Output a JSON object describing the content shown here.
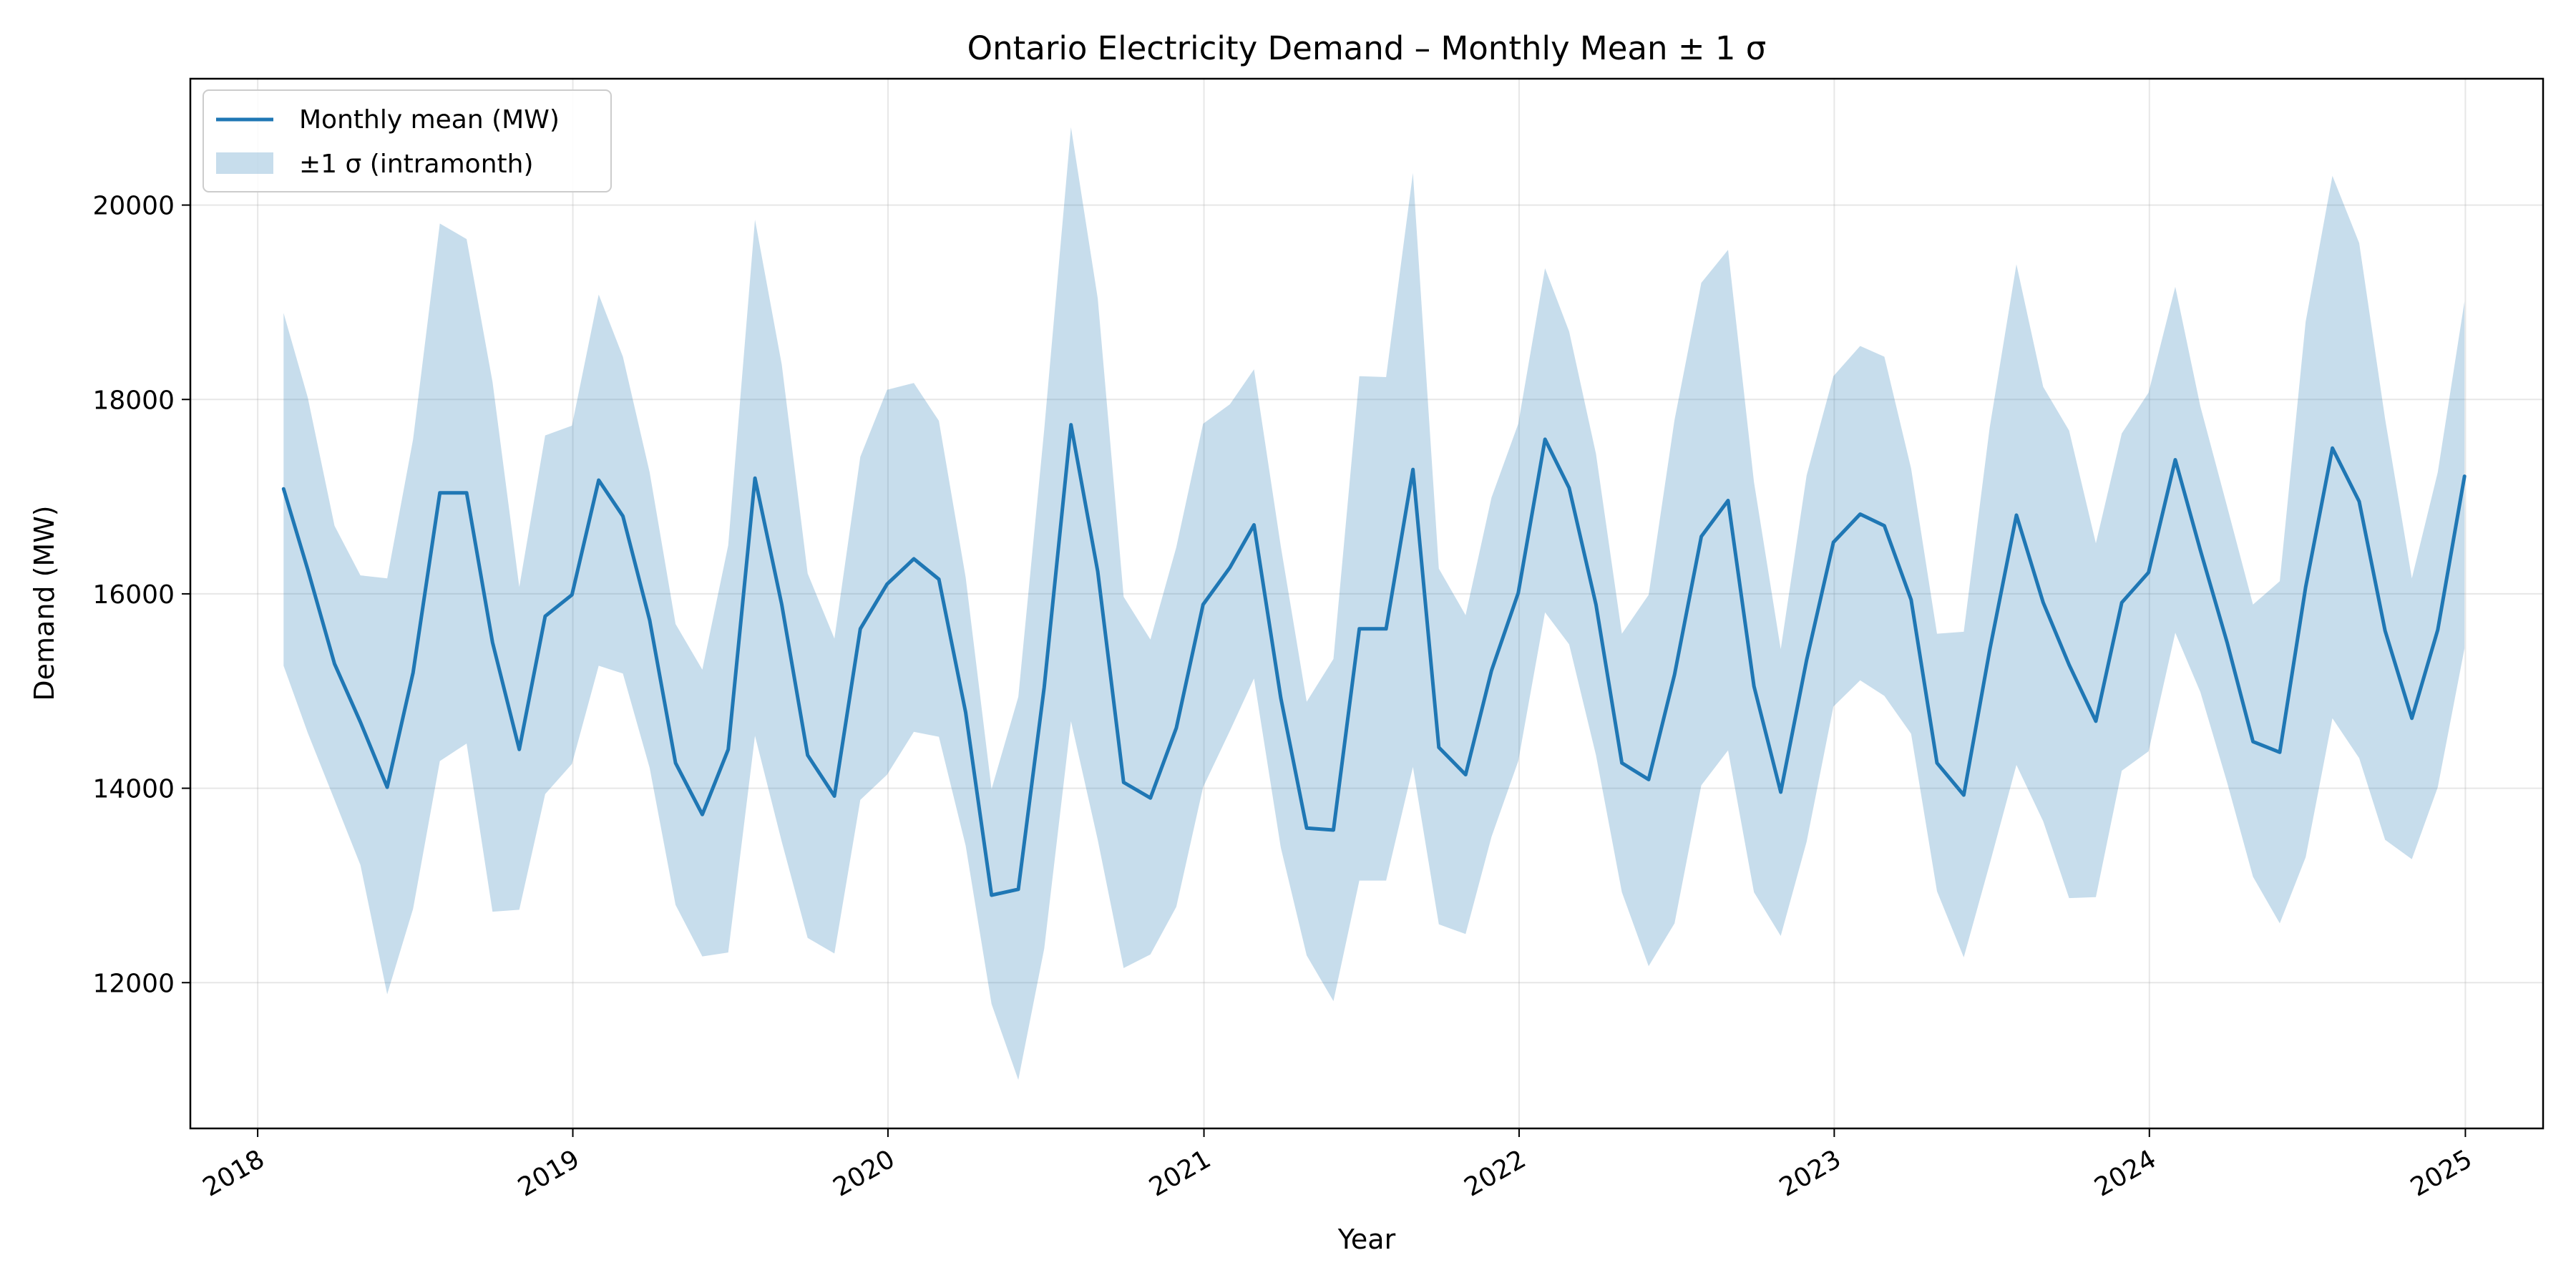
{
  "chart_data": {
    "type": "line",
    "title": "Ontario Electricity Demand – Monthly Mean ± 1 σ",
    "xlabel": "Year",
    "ylabel": "Demand (MW)",
    "x_ticks": [
      "2018",
      "2019",
      "2020",
      "2021",
      "2022",
      "2023",
      "2024",
      "2025"
    ],
    "y_ticks": [
      "12000",
      "14000",
      "16000",
      "18000",
      "20000"
    ],
    "xlim": [
      "2017-10-15",
      "2025-04-01"
    ],
    "ylim": [
      10500,
      21300
    ],
    "grid": true,
    "legend_position": "upper left",
    "colors": {
      "line": "#1f77b4",
      "band": "#1f77b4"
    },
    "x": [
      "2018-01-31",
      "2018-02-28",
      "2018-03-31",
      "2018-04-30",
      "2018-05-31",
      "2018-06-30",
      "2018-07-31",
      "2018-08-31",
      "2018-09-30",
      "2018-10-31",
      "2018-11-30",
      "2018-12-31",
      "2019-01-31",
      "2019-02-28",
      "2019-03-31",
      "2019-04-30",
      "2019-05-31",
      "2019-06-30",
      "2019-07-31",
      "2019-08-31",
      "2019-09-30",
      "2019-10-31",
      "2019-11-30",
      "2019-12-31",
      "2020-01-31",
      "2020-02-29",
      "2020-03-31",
      "2020-04-30",
      "2020-05-31",
      "2020-06-30",
      "2020-07-31",
      "2020-08-31",
      "2020-09-30",
      "2020-10-31",
      "2020-11-30",
      "2020-12-31",
      "2021-01-31",
      "2021-02-28",
      "2021-03-31",
      "2021-04-30",
      "2021-05-31",
      "2021-06-30",
      "2021-07-31",
      "2021-08-31",
      "2021-09-30",
      "2021-10-31",
      "2021-11-30",
      "2021-12-31",
      "2022-01-31",
      "2022-02-28",
      "2022-03-31",
      "2022-04-30",
      "2022-05-31",
      "2022-06-30",
      "2022-07-31",
      "2022-08-31",
      "2022-09-30",
      "2022-10-31",
      "2022-11-30",
      "2022-12-31",
      "2023-01-31",
      "2023-02-28",
      "2023-03-31",
      "2023-04-30",
      "2023-05-31",
      "2023-06-30",
      "2023-07-31",
      "2023-08-31",
      "2023-09-30",
      "2023-10-31",
      "2023-11-30",
      "2023-12-31",
      "2024-01-31",
      "2024-02-29",
      "2024-03-31",
      "2024-04-30",
      "2024-05-31",
      "2024-06-30",
      "2024-07-31",
      "2024-08-31",
      "2024-09-30",
      "2024-10-31",
      "2024-11-30",
      "2024-12-31"
    ],
    "series": [
      {
        "name": "Monthly mean (MW)",
        "values": [
          17080,
          16250,
          15280,
          14680,
          14010,
          15190,
          17040,
          17040,
          15500,
          14400,
          15770,
          15990,
          17170,
          16800,
          15730,
          14260,
          13730,
          14400,
          17190,
          15890,
          14340,
          13920,
          15640,
          16100,
          16360,
          16150,
          14780,
          12900,
          12960,
          15040,
          17740,
          16230,
          14060,
          13900,
          14620,
          15890,
          16270,
          16710,
          14930,
          13590,
          13570,
          15640,
          15640,
          17280,
          14420,
          14140,
          15210,
          16010,
          17590,
          17090,
          15890,
          14260,
          14090,
          15170,
          16590,
          16960,
          15050,
          13960,
          15320,
          16530,
          16820,
          16700,
          15940,
          14260,
          13930,
          15420,
          16810,
          15910,
          15270,
          14690,
          15910,
          16220,
          17380,
          16450,
          15500,
          14480,
          14370,
          16070,
          17500,
          16950,
          15620,
          14720,
          15630,
          17210
        ]
      },
      {
        "name": "±1 σ (intramonth)",
        "lower": [
          15260,
          14570,
          13880,
          13210,
          11880,
          12760,
          14280,
          14460,
          12730,
          12750,
          13940,
          14250,
          15260,
          15180,
          14210,
          12800,
          12270,
          12310,
          14540,
          13450,
          12460,
          12300,
          13880,
          14140,
          14580,
          14530,
          13410,
          11780,
          11000,
          12350,
          14690,
          13470,
          12150,
          12290,
          12780,
          14010,
          14590,
          15130,
          13390,
          12280,
          11810,
          13050,
          13050,
          14220,
          12600,
          12500,
          13500,
          14280,
          15810,
          15480,
          14340,
          12930,
          12170,
          12610,
          14030,
          14390,
          12930,
          12480,
          13450,
          14840,
          15110,
          14950,
          14560,
          12940,
          12260,
          13220,
          14240,
          13660,
          12870,
          12880,
          14180,
          14380,
          15600,
          14990,
          14060,
          13090,
          12610,
          13290,
          14720,
          14310,
          13470,
          13270,
          14010,
          15440
        ],
        "upper": [
          18890,
          18020,
          16700,
          16190,
          16160,
          17590,
          19810,
          19650,
          18180,
          16070,
          17630,
          17730,
          19080,
          18440,
          17250,
          15690,
          15220,
          16500,
          19850,
          18360,
          16210,
          15540,
          17410,
          18100,
          18170,
          17780,
          16170,
          13990,
          14940,
          17690,
          20800,
          19040,
          15970,
          15530,
          16480,
          17750,
          17950,
          18310,
          16490,
          14890,
          15330,
          18240,
          18230,
          20330,
          16260,
          15780,
          16990,
          17750,
          19350,
          18700,
          17440,
          15590,
          15990,
          17790,
          19200,
          19540,
          17150,
          15430,
          17220,
          18240,
          18550,
          18440,
          17290,
          15590,
          15610,
          17710,
          19390,
          18130,
          17680,
          16520,
          17650,
          18070,
          19160,
          17930,
          16900,
          15890,
          16130,
          18800,
          20300,
          19610,
          17800,
          16160,
          17250,
          19010
        ]
      }
    ]
  }
}
